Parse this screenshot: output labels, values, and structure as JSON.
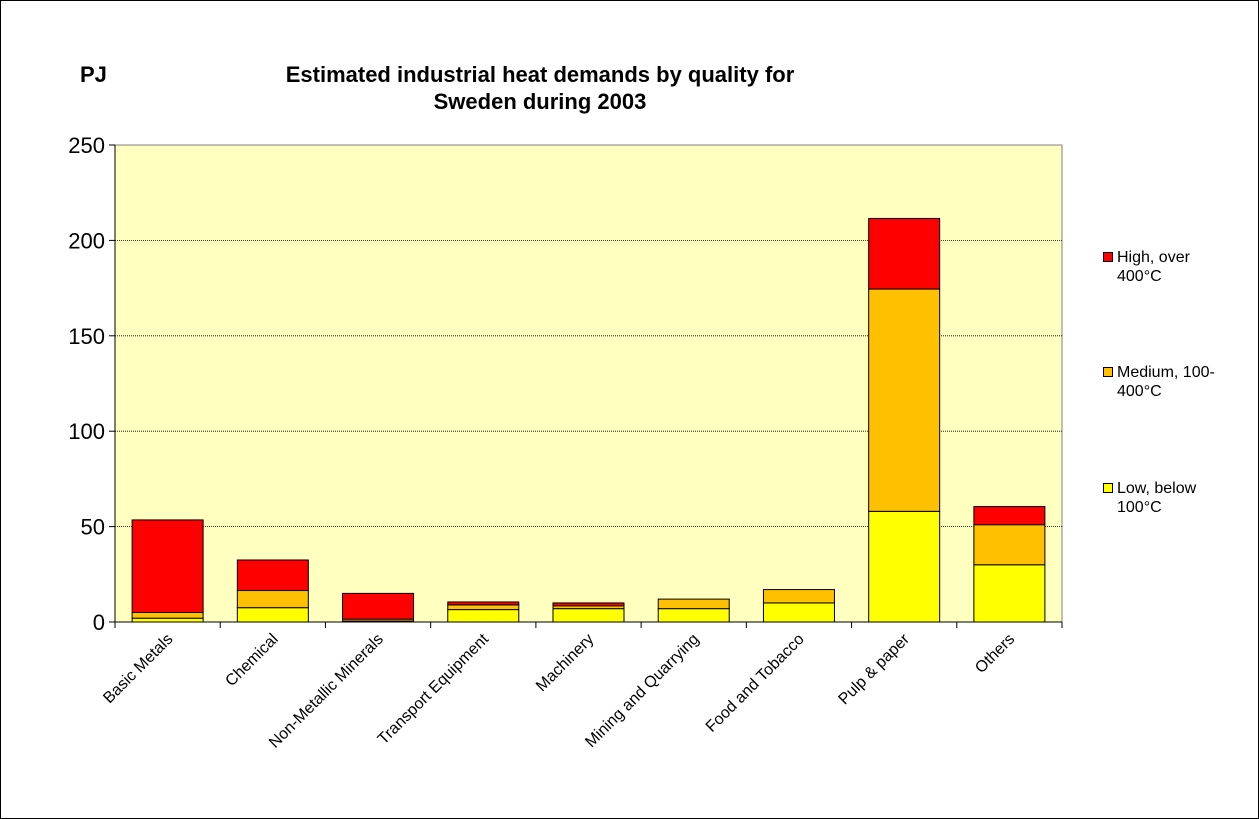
{
  "chart_data": {
    "type": "bar",
    "stacked": true,
    "title_line1": "Estimated industrial heat demands by quality for",
    "title_line2": "Sweden during 2003",
    "ylabel": "PJ",
    "xlabel": "",
    "ylim": [
      0,
      250
    ],
    "yticks": [
      "0",
      "50",
      "100",
      "150",
      "200",
      "250"
    ],
    "grid": true,
    "legend_position": "right",
    "plot_background": "#FFFFC0",
    "categories": [
      "Basic Metals",
      "Chemical",
      "Non-Metallic Minerals",
      "Transport Equipment",
      "Machinery",
      "Mining and Quarrying",
      "Food and Tobacco",
      "Pulp & paper",
      "Others"
    ],
    "series": [
      {
        "name": "Low, below 100°C",
        "color": "#FFFF00",
        "values": [
          2,
          7.5,
          0.5,
          6.5,
          7,
          7,
          10,
          58,
          30
        ]
      },
      {
        "name": "Medium, 100-400°C",
        "color": "#FFC000",
        "values": [
          3,
          9,
          1,
          2.5,
          1.5,
          5,
          7,
          116.5,
          21
        ]
      },
      {
        "name": "High, over 400°C",
        "color": "#FF0000",
        "values": [
          48.5,
          16,
          13.5,
          1.5,
          1.5,
          0,
          0,
          37,
          9.5
        ]
      }
    ],
    "legend": [
      {
        "label_line1": "High, over",
        "label_line2": "400°C",
        "color": "#FF0000"
      },
      {
        "label_line1": "Medium, 100-",
        "label_line2": "400°C",
        "color": "#FFC000"
      },
      {
        "label_line1": "Low, below",
        "label_line2": "100°C",
        "color": "#FFFF00"
      }
    ]
  }
}
